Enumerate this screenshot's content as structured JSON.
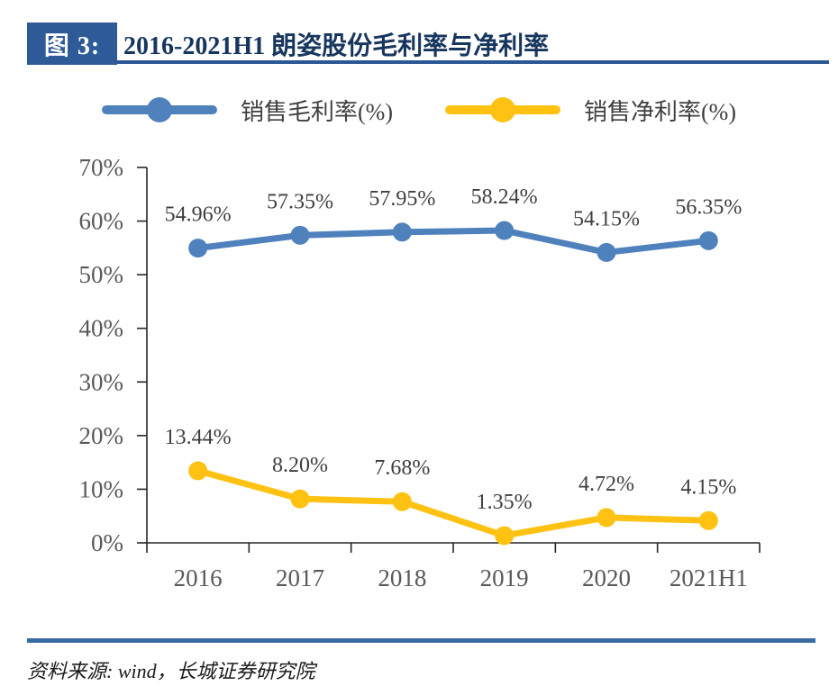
{
  "header": {
    "figure_label": "图 3:",
    "title": "2016-2021H1 朗姿股份毛利率与净利率"
  },
  "colors": {
    "badge_bg": "#2E5B97",
    "title_text": "#17365D",
    "title_rule": "#2C5795",
    "footer_rule": "#3A6BA3",
    "axis_line": "#262626",
    "axis_label": "#595959",
    "data_label": "#3F3F3F",
    "legend_label": "#3F3F3F",
    "gross_margin_series": "#4F81BD",
    "net_margin_series": "#FFC212"
  },
  "chart_data": {
    "type": "line",
    "title": "2016-2021H1 朗姿股份毛利率与净利率",
    "categories": [
      "2016",
      "2017",
      "2018",
      "2019",
      "2020",
      "2021H1"
    ],
    "series": [
      {
        "name": "销售毛利率(%)",
        "color": "#4F81BD",
        "values": [
          54.96,
          57.35,
          57.95,
          58.24,
          54.15,
          56.35
        ],
        "labels": [
          "54.96%",
          "57.35%",
          "57.95%",
          "58.24%",
          "54.15%",
          "56.35%"
        ]
      },
      {
        "name": "销售净利率(%)",
        "color": "#FFC212",
        "values": [
          13.44,
          8.2,
          7.68,
          1.35,
          4.72,
          4.15
        ],
        "labels": [
          "13.44%",
          "8.20%",
          "7.68%",
          "1.35%",
          "4.72%",
          "4.15%"
        ]
      }
    ],
    "xlabel": "",
    "ylabel": "",
    "ylim": [
      0,
      70
    ],
    "ytick_step": 10,
    "ytick_labels": [
      "0%",
      "10%",
      "20%",
      "30%",
      "40%",
      "50%",
      "60%",
      "70%"
    ],
    "grid": false,
    "legend_position": "top"
  },
  "footer": {
    "source": "资料来源: wind，长城证券研究院"
  }
}
